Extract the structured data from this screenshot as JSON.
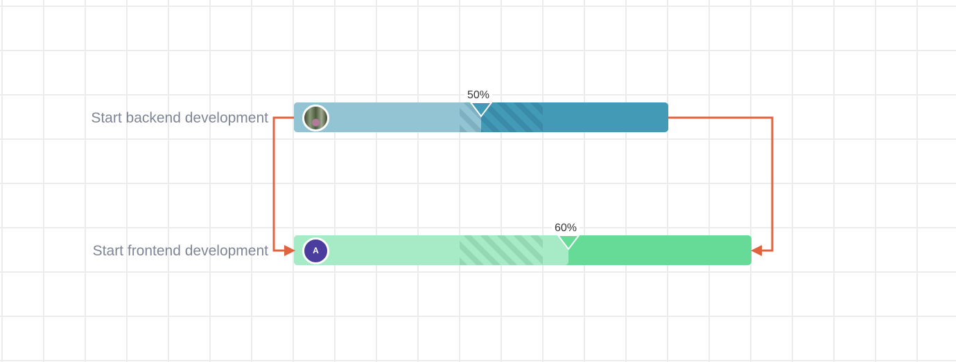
{
  "tasks": [
    {
      "name": "Start backend development",
      "progress": 50,
      "progress_label": "50%",
      "color_done": "#92c4d4",
      "color_rest": "#439ab6",
      "avatar": "photo-avatar"
    },
    {
      "name": "Start frontend development",
      "progress": 60,
      "progress_label": "60%",
      "color_done": "#a6ebc5",
      "color_rest": "#66db98",
      "avatar": "A",
      "avatar_color": "#4a3d9e"
    }
  ],
  "dependency_color": "#e0633f"
}
